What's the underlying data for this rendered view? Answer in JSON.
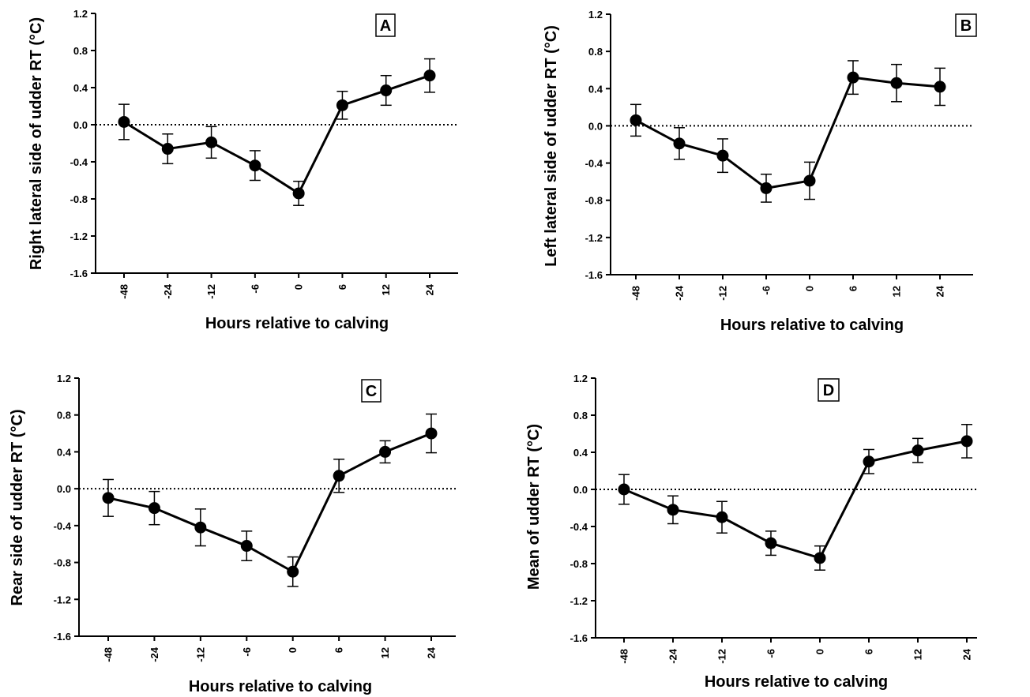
{
  "x_tick_labels": [
    "-48",
    "-24",
    "-12",
    "-6",
    "0",
    "6",
    "12",
    "24"
  ],
  "y_tick_labels": [
    "1.2",
    "0.8",
    "0.4",
    "0.0",
    "-0.4",
    "-0.8",
    "-1.2",
    "-1.6"
  ],
  "chart_data": [
    {
      "type": "line",
      "panel": "A",
      "xlabel": "Hours relative to calving",
      "ylabel": "Right lateral side of udder RT (°C)",
      "categories": [
        "-48",
        "-24",
        "-12",
        "-6",
        "0",
        "6",
        "12",
        "24"
      ],
      "values": [
        0.03,
        -0.26,
        -0.19,
        -0.44,
        -0.74,
        0.21,
        0.37,
        0.53
      ],
      "error": [
        0.19,
        0.16,
        0.17,
        0.16,
        0.13,
        0.15,
        0.16,
        0.18
      ],
      "ylim": [
        -1.6,
        1.2
      ],
      "reference_line": 0.0
    },
    {
      "type": "line",
      "panel": "B",
      "xlabel": "Hours relative to calving",
      "ylabel": "Left lateral side of udder RT (°C)",
      "categories": [
        "-48",
        "-24",
        "-12",
        "-6",
        "0",
        "6",
        "12",
        "24"
      ],
      "values": [
        0.06,
        -0.19,
        -0.32,
        -0.67,
        -0.59,
        0.52,
        0.46,
        0.42
      ],
      "error": [
        0.17,
        0.17,
        0.18,
        0.15,
        0.2,
        0.18,
        0.2,
        0.2
      ],
      "ylim": [
        -1.6,
        1.2
      ],
      "reference_line": 0.0
    },
    {
      "type": "line",
      "panel": "C",
      "xlabel": "Hours relative to calving",
      "ylabel": "Rear side of udder RT (°C)",
      "categories": [
        "-48",
        "-24",
        "-12",
        "-6",
        "0",
        "6",
        "12",
        "24"
      ],
      "values": [
        -0.1,
        -0.21,
        -0.42,
        -0.62,
        -0.9,
        0.14,
        0.4,
        0.6
      ],
      "error": [
        0.2,
        0.18,
        0.2,
        0.16,
        0.16,
        0.18,
        0.12,
        0.21
      ],
      "ylim": [
        -1.6,
        1.2
      ],
      "reference_line": 0.0
    },
    {
      "type": "line",
      "panel": "D",
      "xlabel": "Hours relative to calving",
      "ylabel": "Mean of udder RT (°C)",
      "categories": [
        "-48",
        "-24",
        "-12",
        "-6",
        "0",
        "6",
        "12",
        "24"
      ],
      "values": [
        0.0,
        -0.22,
        -0.3,
        -0.58,
        -0.74,
        0.3,
        0.42,
        0.52
      ],
      "error": [
        0.16,
        0.15,
        0.17,
        0.13,
        0.13,
        0.13,
        0.13,
        0.18
      ],
      "ylim": [
        -1.6,
        1.2
      ],
      "reference_line": 0.0
    }
  ]
}
